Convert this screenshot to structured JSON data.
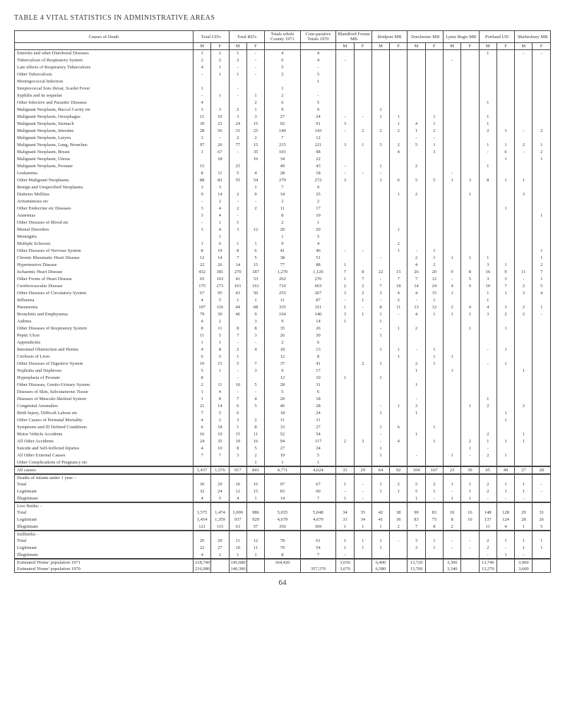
{
  "title": "TABLE 4    VITAL STATISTICS IN ADMINISTRATIVE AREAS",
  "page_num": "64",
  "header1": [
    "Causes of Death",
    "Total UD's",
    "Total RD's",
    "Totals whole County 1971",
    "Com-parative Totals 1970",
    "Blandford Forum MB",
    "Bridport MB",
    "Dorchester MB",
    "Lyme Regis MB",
    "Portland UD",
    "Shaftesbury MB"
  ],
  "mf": [
    "M",
    "F"
  ],
  "rows": [
    [
      "Enteritis and other Diarrhoeal Diseases",
      "1",
      "2",
      "1",
      "-",
      "4",
      "4",
      "",
      "",
      "",
      "",
      "",
      "",
      "",
      "",
      "1",
      "",
      "-",
      "-"
    ],
    [
      "Tuberculosis of Respiratory System",
      "2",
      "2",
      "2",
      "-",
      "6",
      "4",
      "-",
      "",
      "",
      "",
      "",
      "",
      "-",
      "",
      "",
      "",
      "",
      ""
    ],
    [
      "Late effects of Respiratory Tuberculosis",
      "4",
      "1",
      "-",
      "-",
      "5",
      "-",
      "",
      "",
      "",
      "",
      "",
      "",
      "",
      "",
      "",
      "",
      "",
      ""
    ],
    [
      "Other Tuberculosis",
      "-",
      "1",
      "1",
      "-",
      "2",
      "5",
      "",
      "",
      "",
      "",
      "",
      "",
      "",
      "",
      "",
      "",
      "",
      ""
    ],
    [
      "Meningococcal Infection",
      "",
      "",
      "",
      "",
      "",
      "1",
      "",
      "",
      "",
      "",
      "",
      "",
      "",
      "",
      "",
      "",
      "",
      ""
    ],
    [
      "Streptococcal Sore throat, Scarlet Fever",
      "1",
      "",
      "-",
      "",
      "1",
      "",
      "",
      "",
      "",
      "",
      "",
      "",
      "",
      "",
      "",
      "",
      "",
      ""
    ],
    [
      "Syphilis and its sequelae",
      "-",
      "1",
      "-",
      "1",
      "2",
      "-",
      "",
      "",
      "",
      "",
      "",
      "",
      "",
      "",
      "",
      "",
      "",
      ""
    ],
    [
      "Other Infective and Parasitic Diseases",
      "4",
      "",
      "",
      "2",
      "6",
      "5",
      "",
      "",
      "",
      "",
      "",
      "",
      "",
      "",
      "1",
      "",
      "",
      ""
    ],
    [
      "Malignant Neoplasm, Buccal Cavity etc",
      "3",
      "3",
      "2",
      "1",
      "9",
      "9",
      "",
      "",
      "1",
      "",
      "",
      "",
      "",
      "",
      "",
      "",
      "",
      ""
    ],
    [
      "Malignant Neoplasm, Oesophagus",
      "11",
      "10",
      "3",
      "3",
      "27",
      "24",
      "-",
      "-",
      "1",
      "1",
      "",
      "1",
      "",
      "",
      "1",
      "",
      "",
      ""
    ],
    [
      "Malignant Neoplasm, Stomach",
      "30",
      "23",
      "24",
      "15",
      "92",
      "91",
      "3",
      "",
      "",
      "1",
      "4",
      "1",
      "",
      "",
      "1",
      "",
      "",
      ""
    ],
    [
      "Malignant Neoplasm, Intestine",
      "28",
      "56",
      "31",
      "25",
      "140",
      "143",
      "-",
      "2",
      "2",
      "2",
      "1",
      "2",
      "",
      "",
      "2",
      "3",
      "-",
      "2"
    ],
    [
      "Malignant Neoplasm, Larynx",
      "3",
      "-",
      "2",
      "2",
      "7",
      "12",
      "",
      "",
      "",
      "",
      "-",
      "-",
      "",
      "",
      "",
      "",
      "",
      ""
    ],
    [
      "Malignant Neoplasm, Lung, Bronchus",
      "97",
      "26",
      "77",
      "15",
      "215",
      "221",
      "3",
      "1",
      "5",
      "2",
      "5",
      "1",
      "",
      "",
      "1",
      "1",
      "2",
      "1"
    ],
    [
      "Malignant Neoplasm, Breast",
      "1",
      "67",
      "-",
      "35",
      "103",
      "98",
      "",
      "",
      "",
      "4",
      "",
      "3",
      "",
      "",
      "-",
      "6",
      "-",
      "2"
    ],
    [
      "Malignant Neoplasm, Uterus",
      "",
      "18",
      "",
      "16",
      "34",
      "22",
      "",
      "",
      "",
      "",
      "",
      "",
      "",
      "",
      "",
      "1",
      "",
      "1"
    ],
    [
      "Malignant Neoplasm, Prostate",
      "15",
      "",
      "25",
      "",
      "40",
      "43",
      "-",
      "",
      "1",
      "",
      "2",
      "",
      "",
      "",
      "1",
      "",
      "",
      ""
    ],
    [
      "Leukaemia",
      "8",
      "11",
      "5",
      "4",
      "28",
      "18",
      "-",
      "-",
      "-",
      "",
      "",
      "",
      "-",
      "",
      "",
      "",
      "",
      ""
    ],
    [
      "Other Malignant Neoplasms",
      "88",
      "82",
      "55",
      "54",
      "279",
      "272",
      "3",
      "",
      "3",
      "6",
      "5",
      "5",
      "1",
      "3",
      "8",
      "1",
      "1",
      ""
    ],
    [
      "Benign and Unspecified Neoplasms",
      "3",
      "3",
      "",
      "1",
      "7",
      "9",
      "",
      "",
      "",
      "",
      "",
      "",
      "",
      "",
      "",
      "",
      "",
      ""
    ],
    [
      "Diabetes Mellitus",
      "9",
      "14",
      "2",
      "9",
      "34",
      "25",
      "",
      "",
      "",
      "1",
      "2",
      "",
      "",
      "1",
      "",
      "",
      "3",
      ""
    ],
    [
      "Avitaminoses etc",
      "-",
      "2",
      "-",
      "-",
      "2",
      "2",
      "",
      "",
      "",
      "",
      "",
      "",
      "",
      "",
      "",
      "",
      "",
      ""
    ],
    [
      "Other Endocrine etc Diseases",
      "3",
      "4",
      "2",
      "2",
      "11",
      "17",
      "",
      "",
      "",
      "",
      "",
      "",
      "",
      "",
      "",
      "1",
      "",
      ""
    ],
    [
      "Anaemias",
      "3",
      "4",
      "-",
      "",
      "8",
      "10",
      "",
      "",
      "",
      "",
      "",
      "",
      "",
      "",
      "",
      "",
      "",
      "1"
    ],
    [
      "Other Diseases of Blood etc",
      "-",
      "1",
      "1",
      "",
      "2",
      "1",
      "",
      "",
      "",
      "",
      "",
      "",
      "",
      "",
      "",
      "",
      "",
      ""
    ],
    [
      "Mental Disorders",
      "1",
      "4",
      "3",
      "12",
      "20",
      "20",
      "",
      "",
      "",
      "1",
      "",
      "",
      "",
      "",
      "",
      "",
      "",
      ""
    ],
    [
      "Meningitis",
      "",
      "1",
      "",
      "",
      "1",
      "5",
      "",
      "",
      "",
      "",
      "",
      "",
      "",
      "",
      "",
      "",
      "",
      ""
    ],
    [
      "Multiple Sclerosis",
      "1",
      "6",
      "1",
      "1",
      "9",
      "4",
      "",
      "",
      "",
      "2",
      "",
      "",
      "",
      "",
      "",
      "",
      "",
      ""
    ],
    [
      "Other Diseases of Nervous System",
      "8",
      "19",
      "8",
      "6",
      "41",
      "46",
      "-",
      "-",
      "",
      "1",
      "-",
      "1",
      "",
      "",
      "",
      "",
      "",
      "1"
    ],
    [
      "Chronic Rheumatic Heart Disease",
      "12",
      "14",
      "7",
      "5",
      "38",
      "51",
      "",
      "",
      "-",
      "",
      "2",
      "1",
      "1",
      "1",
      "1",
      "",
      "",
      "1"
    ],
    [
      "Hypertensive Disease",
      "22",
      "26",
      "14",
      "15",
      "77",
      "88",
      "1",
      "",
      "",
      "",
      "4",
      "2",
      "",
      "",
      "3",
      "1",
      "",
      "2"
    ],
    [
      "Ischaemic Heart Disease",
      "432",
      "381",
      "270",
      "187",
      "1,270",
      "1,126",
      "7",
      "8",
      "22",
      "15",
      "26",
      "20",
      "9",
      "8",
      "16",
      "9",
      "11",
      "7"
    ],
    [
      "Other Forms of Heart Disease",
      "65",
      "103",
      "41",
      "53",
      "262",
      "270",
      "1",
      "7",
      "-",
      "7",
      "7",
      "12",
      "-",
      "5",
      "3",
      "3",
      "-",
      "1"
    ],
    [
      "Cerebrovascular Disease",
      "175",
      "273",
      "101",
      "161",
      "710",
      "663",
      "2",
      "2",
      "7",
      "18",
      "14",
      "24",
      "4",
      "9",
      "10",
      "7",
      "2",
      "5"
    ],
    [
      "Other Diseases of Circulatory System",
      "67",
      "95",
      "43",
      "50",
      "255",
      "267",
      "3",
      "2",
      "3",
      "4",
      "4",
      "15",
      "1",
      "",
      "1",
      "1",
      "3",
      "4"
    ],
    [
      "Influenza",
      "4",
      "5",
      "1",
      "1",
      "11",
      "87",
      "-",
      "1",
      "-",
      "2",
      "-",
      "1",
      "",
      "",
      "1",
      "",
      "",
      ""
    ],
    [
      "Pneumonia",
      "107",
      "116",
      "44",
      "68",
      "335",
      "311",
      "1",
      "-",
      "8",
      "11",
      "13",
      "12",
      "2",
      "4",
      "4",
      "3",
      "2",
      "1"
    ],
    [
      "Bronchitis and Emphysema",
      "79",
      "30",
      "46",
      "9",
      "164",
      "140",
      "3",
      "1",
      "1",
      "-",
      "4",
      "1",
      "1",
      "1",
      "3",
      "2",
      "2",
      "-"
    ],
    [
      "Asthma",
      "4",
      "2",
      "",
      "3",
      "9",
      "14",
      "1",
      "",
      "1",
      "",
      "",
      "",
      "",
      "",
      "",
      "",
      "",
      ""
    ],
    [
      "Other Diseases of Respiratory System",
      "8",
      "11",
      "8",
      "8",
      "35",
      "26",
      "",
      "",
      "-",
      "1",
      "2",
      "",
      "",
      "1",
      "",
      "1",
      "",
      ""
    ],
    [
      "Peptic Ulcer",
      "11",
      "5",
      "7",
      "3",
      "26",
      "30",
      "",
      "",
      "1",
      "",
      "",
      "",
      "",
      "",
      "",
      "",
      "",
      ""
    ],
    [
      "Appendicitis",
      "1",
      "1",
      "-",
      "-",
      "2",
      "6",
      "",
      "",
      "",
      "",
      "",
      "",
      "",
      "",
      "",
      "",
      "",
      ""
    ],
    [
      "Intestinal Obstruction and Hernia",
      "4",
      "8",
      "2",
      "4",
      "18",
      "13",
      "",
      "",
      "1",
      "1",
      "-",
      "1",
      "",
      "",
      "-",
      "1",
      "",
      ""
    ],
    [
      "Cirrhosis of Liver",
      "6",
      "5",
      "1",
      "",
      "12",
      "8",
      "",
      "",
      "",
      "1",
      "",
      "1",
      "1",
      "",
      "",
      "",
      "",
      ""
    ],
    [
      "Other Diseases of Digestive System",
      "10",
      "15",
      "5",
      "7",
      "37",
      "41",
      "",
      "2",
      "1",
      "",
      "2",
      "1",
      "",
      "",
      "-",
      "1",
      "",
      ""
    ],
    [
      "Nephritis and Nephrosis",
      "5",
      "1",
      "-",
      "3",
      "9",
      "17",
      "",
      "",
      "",
      "",
      "1",
      "",
      "1",
      "",
      "",
      "",
      "1",
      ""
    ],
    [
      "Hyperplasia of Prostate",
      "8",
      "",
      "-",
      "",
      "12",
      "10",
      "1",
      "",
      "1",
      "",
      "",
      "",
      "",
      "",
      "",
      "",
      "",
      ""
    ],
    [
      "Other Diseases, Genito-Urinary System",
      "2",
      "11",
      "10",
      "5",
      "28",
      "31",
      "",
      "",
      "",
      "",
      "1",
      "",
      "",
      "",
      "",
      "",
      "",
      ""
    ],
    [
      "Diseases of Skin, Subcutaneous Tissue",
      "1",
      "4",
      "-",
      "-",
      "5",
      "6",
      "",
      "",
      "",
      "",
      "",
      "",
      "",
      "",
      "",
      "",
      "",
      ""
    ],
    [
      "Diseases of Musculo-Skeletal System",
      "1",
      "8",
      "7",
      "4",
      "20",
      "18",
      "",
      "",
      "",
      "",
      "-",
      "",
      "",
      "",
      "1",
      "",
      "",
      ""
    ],
    [
      "Congenital Anomalies",
      "21",
      "14",
      "6",
      "5",
      "46",
      "28",
      "",
      "",
      "-",
      "1",
      "3",
      "",
      "",
      "1",
      "2",
      "",
      "2",
      ""
    ],
    [
      "Birth Injury, Difficult Labour etc",
      "7",
      "5",
      "6",
      "",
      "18",
      "24",
      "",
      "",
      "1",
      "",
      "1",
      "",
      "",
      "",
      "",
      "1",
      "",
      ""
    ],
    [
      "Other Causes of Perinatal Mortality",
      "4",
      "2",
      "3",
      "2",
      "11",
      "11",
      "",
      "",
      "",
      "",
      "",
      "",
      "",
      "",
      "",
      "1",
      "",
      ""
    ],
    [
      "Symptoms and Ill Defined Conditions",
      "6",
      "18",
      "1",
      "8",
      "33",
      "27",
      "",
      "",
      "1",
      "6",
      "",
      "1",
      "",
      "",
      "",
      "",
      "",
      ""
    ],
    [
      "Motor Vehicle Accidents",
      "16",
      "10",
      "15",
      "11",
      "52",
      "54",
      "",
      "",
      "-",
      "",
      "1",
      "",
      "",
      "",
      "2",
      "",
      "1",
      ""
    ],
    [
      "All Other Accidents",
      "24",
      "35",
      "19",
      "16",
      "94",
      "117",
      "2",
      "3",
      "-",
      "4",
      "",
      "1",
      "",
      "2",
      "1",
      "1",
      "1",
      ""
    ],
    [
      "Suicide and Self-Inflicted Injuries",
      "4",
      "10",
      "8",
      "5",
      "27",
      "24",
      "",
      "",
      "1",
      "",
      "",
      "",
      "",
      "1",
      "-",
      "",
      "",
      ""
    ],
    [
      "All Other External Causes",
      "7",
      "7",
      "3",
      "2",
      "19",
      "5",
      "",
      "",
      "1",
      "",
      "-",
      "",
      "1",
      "-",
      "2",
      "1",
      "",
      ""
    ],
    [
      "Other Complications of Pregnancy etc",
      "",
      "",
      "",
      "1",
      "1",
      "1",
      "",
      "",
      "",
      "",
      "",
      "",
      "",
      "",
      "",
      "",
      "",
      ""
    ]
  ],
  "sections": [
    {
      "label": "All causes",
      "row": [
        "1,437",
        "1,576",
        "917",
        "841",
        "4,771",
        "4,624",
        "33",
        "29",
        "64",
        "92",
        "104",
        "107",
        "23",
        "39",
        "65",
        "49",
        "27",
        "28"
      ]
    },
    {
      "label_rows": [
        [
          "Deaths of infants under 1 year: -",
          "",
          "",
          "",
          "",
          "",
          "",
          "",
          "",
          "",
          "",
          "",
          "",
          "",
          "",
          "",
          "",
          "",
          ""
        ],
        [
          "    Total",
          "36",
          "29",
          "16",
          "16",
          "97",
          "67",
          "1",
          "-",
          "1",
          "2",
          "5",
          "2",
          "1",
          "1",
          "2",
          "1",
          "1",
          "-"
        ],
        [
          "    Legitimate",
          "32",
          "24",
          "12",
          "15",
          "83",
          "60",
          "-",
          "-",
          "1",
          "1",
          "5",
          "1",
          "-",
          "1",
          "2",
          "1",
          "1",
          "-"
        ],
        [
          "    Illegitimate",
          "4",
          "5",
          "4",
          "1",
          "14",
          "7",
          "1",
          "-",
          "",
          "",
          "1",
          "-",
          "1",
          "1",
          "-",
          "-",
          "-",
          ""
        ]
      ]
    },
    {
      "label_rows": [
        [
          "Live Births: -",
          "",
          "",
          "",
          "",
          "",
          "",
          "",
          "",
          "",
          "",
          "",
          "",
          "",
          "",
          "",
          "",
          "",
          ""
        ],
        [
          "    Total",
          "1,575",
          "1,474",
          "1,000",
          "986",
          "5,035",
          "5,048",
          "34",
          "35",
          "42",
          "38",
          "90",
          "83",
          "10",
          "16",
          "148",
          "128",
          "29",
          "31"
        ],
        [
          "    Legitimate",
          "1,454",
          "1,359",
          "937",
          "929",
          "4,679",
          "4,679",
          "33",
          "34",
          "41",
          "36",
          "83",
          "75",
          "8",
          "16",
          "137",
          "124",
          "28",
          "26"
        ],
        [
          "    Illegitimate",
          "121",
          "115",
          "63",
          "57",
          "356",
          "369",
          "1",
          "1",
          "1",
          "2",
          "7",
          "8",
          "2",
          "",
          "11",
          "4",
          "1",
          "5"
        ]
      ]
    },
    {
      "label_rows": [
        [
          "Stillbirths: -",
          "",
          "",
          "",
          "",
          "",
          "",
          "",
          "",
          "",
          "",
          "",
          "",
          "",
          "",
          "",
          "",
          "",
          ""
        ],
        [
          "    Total",
          "26",
          "29",
          "11",
          "12",
          "78",
          "61",
          "1",
          "1",
          "1",
          "-",
          "3",
          "1",
          "-",
          "-",
          "2",
          "1",
          "1",
          "1"
        ],
        [
          "    Legitimate",
          "22",
          "27",
          "10",
          "11",
          "70",
          "54",
          "1",
          "1",
          "1",
          "",
          "3",
          "1",
          "-",
          "-",
          "2",
          "-",
          "1",
          "1"
        ],
        [
          "    Illegitimate",
          "4",
          "2",
          "1",
          "1",
          "8",
          "7",
          "-",
          "",
          "",
          "",
          "",
          "",
          "",
          "",
          "-",
          "1",
          "-",
          ""
        ]
      ]
    },
    {
      "label_rows": [
        [
          "Estimated 'Home' population 1971",
          "218,740",
          "",
          "145,680",
          "",
          "364,420",
          "",
          "3,650",
          "",
          "6,400",
          "",
          "13,720",
          "",
          "3,300",
          "",
          "13,740",
          "",
          "3,960",
          ""
        ],
        [
          "Estimated 'Home' population 1970",
          "216,980",
          "",
          "140,390",
          "",
          "",
          "357,370",
          "3,670",
          "",
          "6,580",
          "",
          "13,760",
          "",
          "3,340",
          "",
          "13,270",
          "",
          "3,600",
          ""
        ]
      ]
    }
  ]
}
